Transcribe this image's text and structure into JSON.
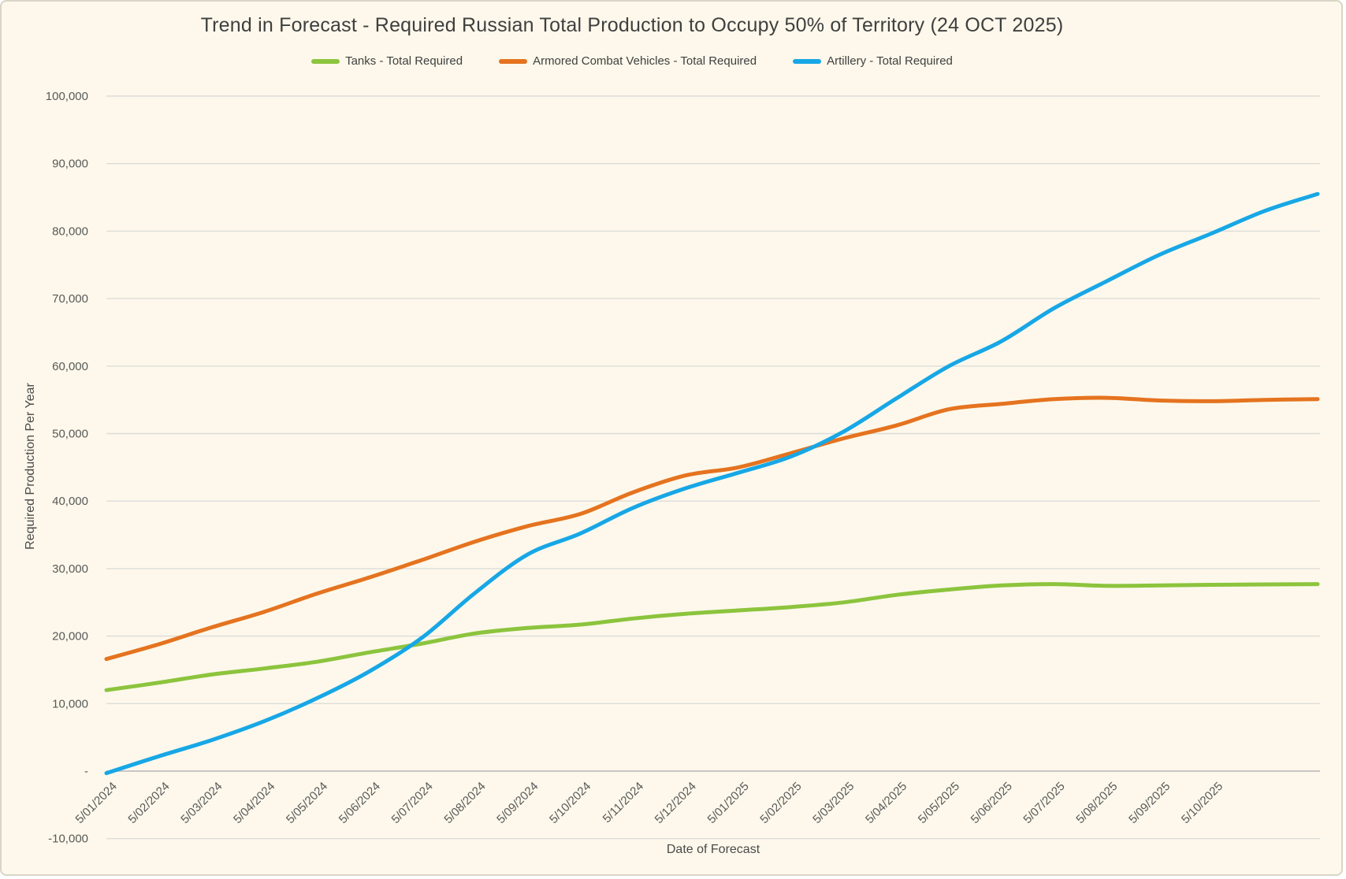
{
  "chart_data": {
    "type": "line",
    "title": "Trend in Forecast - Required Russian Total Production to Occupy 50% of Territory (24 OCT 2025)",
    "xlabel": "Date of Forecast",
    "ylabel": "Required Production Per Year",
    "ylim": [
      -10000,
      100000
    ],
    "grid": true,
    "legend_position": "top",
    "background_color": "#fdf8eb",
    "gridline_color": "#dcdcda",
    "zero_axis_color": "#c0c0be",
    "yticks": [
      {
        "value": 100000,
        "label": "100,000"
      },
      {
        "value": 90000,
        "label": "90,000"
      },
      {
        "value": 80000,
        "label": "80,000"
      },
      {
        "value": 70000,
        "label": "70,000"
      },
      {
        "value": 60000,
        "label": "60,000"
      },
      {
        "value": 50000,
        "label": "50,000"
      },
      {
        "value": 40000,
        "label": "40,000"
      },
      {
        "value": 30000,
        "label": "30,000"
      },
      {
        "value": 20000,
        "label": "20,000"
      },
      {
        "value": 10000,
        "label": "10,000"
      },
      {
        "value": 0,
        "label": "-"
      },
      {
        "value": -10000,
        "label": "-10,000"
      }
    ],
    "categories": [
      "5/01/2024",
      "5/02/2024",
      "5/03/2024",
      "5/04/2024",
      "5/05/2024",
      "5/06/2024",
      "5/07/2024",
      "5/08/2024",
      "5/09/2024",
      "5/10/2024",
      "5/11/2024",
      "5/12/2024",
      "5/01/2025",
      "5/02/2025",
      "5/03/2025",
      "5/04/2025",
      "5/05/2025",
      "5/06/2025",
      "5/07/2025",
      "5/08/2025",
      "5/09/2025",
      "5/10/2025",
      "",
      ""
    ],
    "series": [
      {
        "name": "Tanks - Total Required",
        "color": "#8cc43d",
        "values": [
          12000,
          13100,
          14300,
          15200,
          16200,
          17600,
          18900,
          20400,
          21200,
          21700,
          22600,
          23300,
          23800,
          24300,
          25000,
          26100,
          26900,
          27500,
          27700,
          27450,
          27500,
          27600,
          27650,
          27700
        ]
      },
      {
        "name": "Armored Combat Vehicles - Total Required",
        "color": "#e5731f",
        "values": [
          16600,
          18800,
          21300,
          23600,
          26300,
          28700,
          31300,
          34000,
          36300,
          38100,
          41300,
          43800,
          45000,
          47100,
          49300,
          51200,
          53600,
          54400,
          55100,
          55300,
          54900,
          54800,
          55000,
          55100
        ]
      },
      {
        "name": "Artillery - Total Required",
        "color": "#17a7e6",
        "values": [
          -300,
          2200,
          4600,
          7400,
          10800,
          14800,
          19800,
          26400,
          32100,
          35200,
          39000,
          41900,
          44200,
          46600,
          50300,
          55200,
          60000,
          63700,
          68600,
          72600,
          76500,
          79700,
          83000,
          85500
        ]
      }
    ]
  }
}
